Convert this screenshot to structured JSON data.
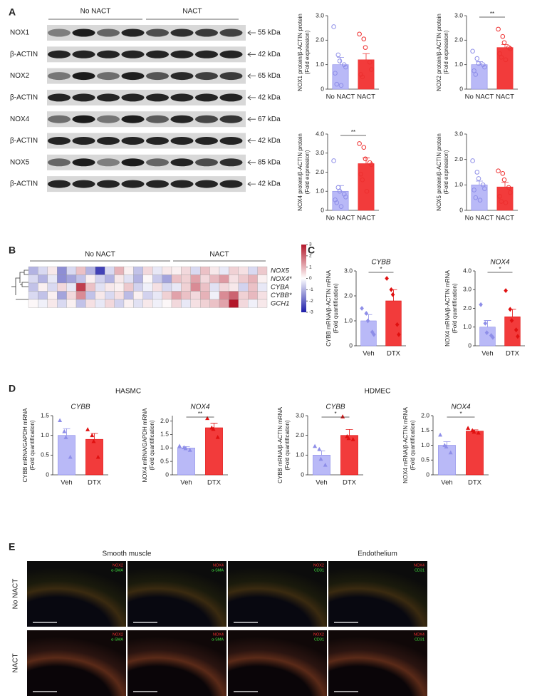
{
  "panel_labels": [
    "A",
    "B",
    "C",
    "D",
    "E"
  ],
  "blot": {
    "groups": [
      "No NACT",
      "NACT"
    ],
    "rows": [
      {
        "label": "NOX1",
        "size": "55 kDa"
      },
      {
        "label": "β-ACTIN",
        "size": "42 kDa"
      },
      {
        "label": "NOX2",
        "size": "65 kDa"
      },
      {
        "label": "β-ACTIN",
        "size": "42 kDa"
      },
      {
        "label": "NOX4",
        "size": "67 kDa"
      },
      {
        "label": "β-ACTIN",
        "size": "42 kDa"
      },
      {
        "label": "NOX5",
        "size": "85 kDa"
      },
      {
        "label": "β-ACTIN",
        "size": "42 kDa"
      }
    ]
  },
  "panel_d_groups": [
    "HASMC",
    "HDMEC"
  ],
  "chart_data": [
    {
      "type": "bar",
      "ylabel": [
        "NOX1 protein/β-ACTIN protein",
        "(Fold expression)"
      ],
      "categories": [
        "No NACT",
        "NACT"
      ],
      "values": [
        1.0,
        1.2
      ],
      "errors": [
        0.3,
        0.25
      ],
      "points": [
        [
          2.55,
          1.4,
          1.15,
          1.0,
          0.9,
          0.65,
          0.2,
          0.15
        ],
        [
          2.25,
          2.05,
          1.7,
          1.1,
          0.8,
          0.6,
          0.5
        ]
      ],
      "colors": [
        "#b9b9f7",
        "#f23b3b"
      ],
      "point_colors": [
        "#8e8ee8",
        "#ee3030"
      ],
      "marker": "circle",
      "ylim": [
        0,
        3
      ],
      "yticks": [
        0,
        {
          "value": 1,
          "label": "1.0"
        },
        {
          "value": 2,
          "label": "2.0"
        },
        {
          "value": 3,
          "label": "3.0"
        }
      ]
    },
    {
      "type": "bar",
      "ylabel": [
        "NOX2 protein/β-ACTIN protein",
        "(Fold expression)"
      ],
      "categories": [
        "No NACT",
        "NACT"
      ],
      "values": [
        1.0,
        1.7
      ],
      "errors": [
        0.12,
        0.12
      ],
      "points": [
        [
          1.55,
          1.25,
          1.05,
          1.0,
          0.9,
          0.75,
          0.6
        ],
        [
          2.45,
          2.15,
          1.9,
          1.7,
          1.65,
          1.45,
          1.3,
          1.2
        ]
      ],
      "colors": [
        "#b9b9f7",
        "#f23b3b"
      ],
      "point_colors": [
        "#8e8ee8",
        "#ee3030"
      ],
      "marker": "circle",
      "ylim": [
        0,
        3
      ],
      "yticks": [
        0,
        {
          "value": 1,
          "label": "1.0"
        },
        {
          "value": 2,
          "label": "2.0"
        },
        {
          "value": 3,
          "label": "3.0"
        }
      ],
      "significance": "**"
    },
    {
      "type": "bar",
      "ylabel": [
        "NOX4 protein/β-ACTIN protein",
        "(Fold expression)"
      ],
      "categories": [
        "No NACT",
        "NACT"
      ],
      "values": [
        1.0,
        2.45
      ],
      "errors": [
        0.3,
        0.3
      ],
      "points": [
        [
          2.6,
          1.2,
          1.0,
          0.85,
          0.7,
          0.55,
          0.4,
          0.2
        ],
        [
          3.5,
          3.3,
          2.7,
          2.5,
          2.4,
          1.9,
          1.6,
          1.0
        ]
      ],
      "colors": [
        "#b9b9f7",
        "#f23b3b"
      ],
      "point_colors": [
        "#8e8ee8",
        "#ee3030"
      ],
      "marker": "circle",
      "ylim": [
        0,
        4
      ],
      "yticks": [
        0,
        {
          "value": 1,
          "label": "1.0"
        },
        {
          "value": 2,
          "label": "2.0"
        },
        {
          "value": 3,
          "label": "3.0"
        },
        {
          "value": 4,
          "label": "4.0"
        }
      ],
      "significance": "**"
    },
    {
      "type": "bar",
      "ylabel": [
        "NOX5 protein/β-ACTIN protein",
        "(Fold expression)"
      ],
      "categories": [
        "No NACT",
        "NACT"
      ],
      "values": [
        1.0,
        0.92
      ],
      "errors": [
        0.15,
        0.18
      ],
      "points": [
        [
          1.95,
          1.5,
          1.25,
          1.0,
          0.85,
          0.8,
          0.5,
          0.4
        ],
        [
          1.55,
          1.45,
          1.2,
          0.9,
          0.7,
          0.55,
          0.35,
          0.3
        ]
      ],
      "colors": [
        "#b9b9f7",
        "#f23b3b"
      ],
      "point_colors": [
        "#8e8ee8",
        "#ee3030"
      ],
      "marker": "circle",
      "ylim": [
        0,
        3
      ],
      "yticks": [
        0,
        {
          "value": 1,
          "label": "1.0"
        },
        {
          "value": 2,
          "label": "2.0"
        },
        {
          "value": 3,
          "label": "3.0"
        }
      ]
    },
    {
      "type": "bar",
      "title": "CYBB",
      "ylabel": [
        "CYBB mRNA/β-ACTIN mRNA",
        "(Fold quantification)"
      ],
      "categories": [
        "Veh",
        "DTX"
      ],
      "values": [
        1.0,
        1.8
      ],
      "errors": [
        0.25,
        0.45
      ],
      "points": [
        [
          1.5,
          1.3,
          1.0,
          0.55,
          0.45
        ],
        [
          2.7,
          2.25,
          2.05,
          0.85,
          0.45
        ]
      ],
      "colors": [
        "#b9b9f7",
        "#f23b3b"
      ],
      "point_colors": [
        "#8e8ee8",
        "#e01010"
      ],
      "marker": "diamond",
      "ylim": [
        0,
        3
      ],
      "yticks": [
        0,
        {
          "value": 1,
          "label": "1.0"
        },
        {
          "value": 2,
          "label": "2.0"
        },
        {
          "value": 3,
          "label": "3.0"
        }
      ],
      "significance": "*"
    },
    {
      "type": "bar",
      "title": "NOX4",
      "ylabel": [
        "NOX4 mRNA/β-ACTIN mRNA",
        "(Fold quantification)"
      ],
      "categories": [
        "Veh",
        "DTX"
      ],
      "values": [
        1.0,
        1.55
      ],
      "errors": [
        0.35,
        0.4
      ],
      "points": [
        [
          2.2,
          1.2,
          0.7,
          0.55,
          0.45
        ],
        [
          2.95,
          1.95,
          1.35,
          0.85,
          0.5
        ]
      ],
      "colors": [
        "#b9b9f7",
        "#f23b3b"
      ],
      "point_colors": [
        "#8e8ee8",
        "#e01010"
      ],
      "marker": "diamond",
      "ylim": [
        0,
        4
      ],
      "yticks": [
        0,
        {
          "value": 1,
          "label": "1.0"
        },
        {
          "value": 2,
          "label": "2.0"
        },
        {
          "value": 3,
          "label": "3.0"
        },
        {
          "value": 4,
          "label": "4.0"
        }
      ],
      "significance": "*"
    },
    {
      "type": "bar",
      "title": "CYBB",
      "ylabel": [
        "CYBB mRNA/GAPDH mRNA",
        "(Fold quantification)"
      ],
      "categories": [
        "Veh",
        "DTX"
      ],
      "values": [
        1.0,
        0.9
      ],
      "errors": [
        0.17,
        0.15
      ],
      "points": [
        [
          1.38,
          1.1,
          0.95,
          0.45
        ],
        [
          1.15,
          1.0,
          0.85,
          0.45
        ]
      ],
      "colors": [
        "#b9b9f7",
        "#f23b3b"
      ],
      "point_colors": [
        "#8e8ee8",
        "#e01010"
      ],
      "marker": "triangle",
      "ylim": [
        0,
        1.5
      ],
      "yticks": [
        0,
        0.5,
        {
          "value": 1,
          "label": "1.0"
        },
        1.5
      ]
    },
    {
      "type": "bar",
      "title": "NOX4",
      "ylabel": [
        "NOX4 mRNA/GAPDH mRNA",
        "(Fold quantification)"
      ],
      "categories": [
        "Veh",
        "DTX"
      ],
      "values": [
        1.0,
        1.75
      ],
      "errors": [
        0.05,
        0.17
      ],
      "points": [
        [
          1.07,
          1.02,
          0.98,
          0.92
        ],
        [
          2.1,
          1.75,
          1.7,
          1.4
        ]
      ],
      "colors": [
        "#b9b9f7",
        "#f23b3b"
      ],
      "point_colors": [
        "#8e8ee8",
        "#e01010"
      ],
      "marker": "triangle",
      "ylim": [
        0,
        2.2
      ],
      "yticks": [
        0,
        0.5,
        {
          "value": 1,
          "label": "1.0"
        },
        1.5,
        {
          "value": 2,
          "label": "2.0"
        }
      ],
      "significance": "**"
    },
    {
      "type": "bar",
      "title": "CYBB",
      "ylabel": [
        "CYBB mRNA/β-ACTIN mRNA",
        "(Fold quantification)"
      ],
      "categories": [
        "Veh",
        "DTX"
      ],
      "values": [
        1.0,
        2.0
      ],
      "errors": [
        0.22,
        0.3
      ],
      "points": [
        [
          1.45,
          1.3,
          0.8,
          0.5
        ],
        [
          2.95,
          1.95,
          1.85,
          1.8
        ]
      ],
      "colors": [
        "#b9b9f7",
        "#f23b3b"
      ],
      "point_colors": [
        "#8e8ee8",
        "#e01010"
      ],
      "marker": "triangle",
      "ylim": [
        0,
        3
      ],
      "yticks": [
        0,
        {
          "value": 1,
          "label": "1.0"
        },
        {
          "value": 2,
          "label": "2.0"
        },
        {
          "value": 3,
          "label": "3.0"
        }
      ],
      "significance": "*"
    },
    {
      "type": "bar",
      "title": "NOX4",
      "ylabel": [
        "NOX4 mRNA/β-ACTIN mRNA",
        "(Fold quantification)"
      ],
      "categories": [
        "Veh",
        "DTX"
      ],
      "values": [
        1.0,
        1.48
      ],
      "errors": [
        0.12,
        0.04
      ],
      "points": [
        [
          1.35,
          1.0,
          0.95,
          0.75
        ],
        [
          1.58,
          1.5,
          1.45,
          1.42
        ]
      ],
      "colors": [
        "#b9b9f7",
        "#f23b3b"
      ],
      "point_colors": [
        "#8e8ee8",
        "#e01010"
      ],
      "marker": "triangle",
      "ylim": [
        0,
        2
      ],
      "yticks": [
        0,
        0.5,
        {
          "value": 1,
          "label": "1.0"
        },
        1.5,
        {
          "value": 2,
          "label": "2.0"
        }
      ],
      "significance": "*"
    },
    {
      "type": "heatmap",
      "genes": [
        "NOX5",
        "NOX4*",
        "CYBA",
        "CYBB*",
        "GCH1"
      ],
      "zlim": [
        -3,
        3
      ],
      "zticks": [
        3,
        2,
        1,
        0,
        -1,
        -2,
        -3
      ],
      "colors": [
        "#1c1ca8",
        "#ffffff",
        "#b3172a"
      ],
      "groups": [
        {
          "name": "No NACT",
          "values": [
            [
              -1,
              -0.5,
              0.3,
              -1.5,
              -0.5,
              0.8,
              -1,
              -2.5,
              -0.5,
              1,
              0.2,
              -0.8,
              0.5,
              -0.3,
              0.3
            ],
            [
              -0.5,
              -1,
              -0.3,
              -1.5,
              -1.2,
              -0.8,
              0.2,
              -0.6,
              -1,
              0.3,
              -0.4,
              -1,
              0.1,
              -0.7,
              -1.2
            ],
            [
              -0.8,
              0.2,
              -0.5,
              0.5,
              -0.3,
              2.5,
              0.8,
              -0.4,
              0.3,
              0.2,
              0.7,
              -0.6,
              -0.2,
              0.4,
              -0.5
            ],
            [
              -0.5,
              -0.8,
              0.2,
              -1.2,
              0.5,
              1.5,
              -0.8,
              0.3,
              -0.5,
              0.4,
              -0.9,
              0.2,
              -0.6,
              -0.3,
              0.6
            ],
            [
              0.1,
              -0.2,
              0.3,
              -0.5,
              0.2,
              -0.8,
              0.4,
              -0.3,
              0.5,
              -0.6,
              0.2,
              -0.4,
              0.3,
              -0.2,
              0.1
            ]
          ]
        },
        {
          "name": "NACT",
          "values": [
            [
              0.2,
              0.5,
              -0.5,
              0.8,
              0.3,
              -0.3,
              0.6,
              0.4,
              -0.5,
              0.7
            ],
            [
              0.8,
              0.6,
              1.2,
              0.5,
              0.9,
              1.3,
              0.4,
              0.7,
              1,
              0.2
            ],
            [
              -0.3,
              0.6,
              1.5,
              0.8,
              -0.4,
              0.5,
              0.3,
              -0.6,
              0.8,
              -0.3
            ],
            [
              1.2,
              0.8,
              0.5,
              1,
              -0.2,
              1.5,
              2,
              0.6,
              0.9,
              0.4
            ],
            [
              0.5,
              -0.3,
              0.4,
              0.6,
              0.8,
              1.2,
              3,
              0.5,
              -0.2,
              0.3
            ]
          ]
        }
      ]
    }
  ],
  "images": {
    "columns": [
      "Smooth muscle",
      "Endothelium"
    ],
    "rows": [
      "No NACT",
      "NACT"
    ],
    "stains": [
      [
        "NOX2",
        "α-SMA"
      ],
      [
        "NOX4",
        "α-SMA"
      ],
      [
        "NOX2",
        "CD31"
      ],
      [
        "NOX4",
        "CD31"
      ]
    ]
  }
}
